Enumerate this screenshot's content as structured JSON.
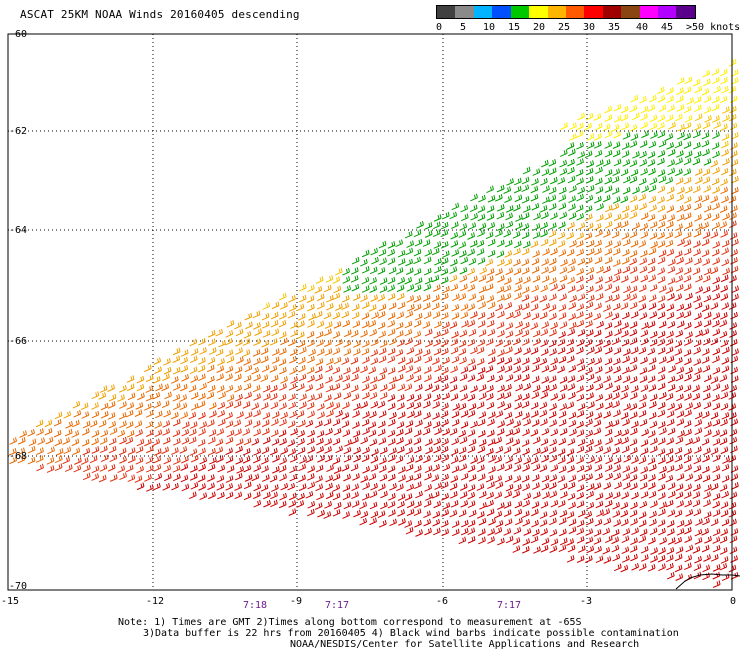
{
  "title": "ASCAT 25KM NOAA Winds 20160405 descending",
  "legend": {
    "colors": [
      "#404040",
      "#8a8a8a",
      "#00b4ff",
      "#0050ff",
      "#00c800",
      "#ffff00",
      "#ffb400",
      "#ff5a00",
      "#ff0000",
      "#a00000",
      "#8b4513",
      "#ff00ff",
      "#b400ff",
      "#5a008c"
    ],
    "labels": [
      "0",
      "5",
      "10",
      "15",
      "20",
      "25",
      "30",
      "35",
      "40",
      "45",
      ">50 knots"
    ]
  },
  "axes": {
    "x_ticks": [
      "-15",
      "-12",
      "-9",
      "-6",
      "-3",
      "0"
    ],
    "y_ticks": [
      "-60",
      "-62",
      "-64",
      "-66",
      "-68",
      "-70"
    ]
  },
  "times": [
    "7:18",
    "7:17",
    "7:17"
  ],
  "notes": {
    "line1": "Note: 1) Times are GMT 2)Times along bottom correspond to measurement at -65S",
    "line2": "3)Data buffer is 22 hrs from 20160405 4) Black wind barbs indicate possible contamination",
    "line3": "NOAA/NESDIS/Center for Satellite Applications and Research"
  }
}
